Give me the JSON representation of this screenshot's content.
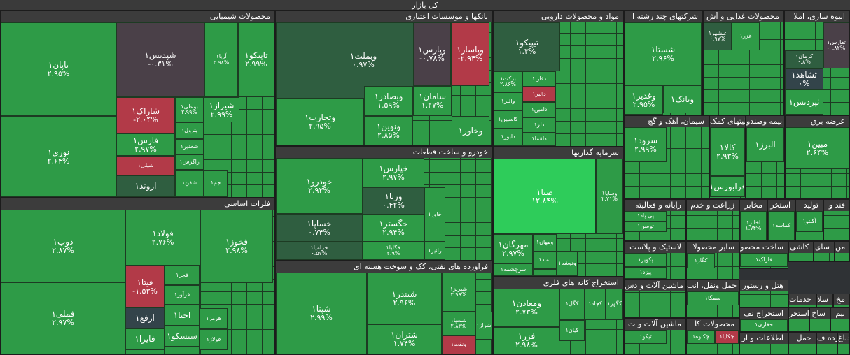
{
  "root_title": "کل بازار",
  "colors": {
    "strong_green": "#2ecc5a",
    "green": "#2e9b47",
    "dark_green": "#2f5e40",
    "neutral": "#4a4048",
    "red": "#b23a48",
    "dark_red": "#8a3140",
    "teal": "#33444a"
  },
  "chart_data": {
    "type": "treemap",
    "title": "کل بازار",
    "sectors": [
      {
        "name": "محصولات شیمیایی",
        "stocks": [
          {
            "symbol": "تاپان۱",
            "change": "۲.۹۵%",
            "color": "#2e9b47"
          },
          {
            "symbol": "نوری۱",
            "change": "۲.۶۴%",
            "color": "#2e9b47"
          },
          {
            "symbol": "شپدیس۱",
            "change": "-۰.۳۱%",
            "color": "#4a4048"
          },
          {
            "symbol": "آریا۱",
            "change": "۲.۹۸%",
            "color": "#2e9b47"
          },
          {
            "symbol": "تاپیکو۱",
            "change": "۲.۹۹%",
            "color": "#2e9b47"
          },
          {
            "symbol": "شاراک۱",
            "change": "-۲.۰۴%",
            "color": "#b23a48"
          },
          {
            "symbol": "بوعلی۱",
            "change": "۲.۹۹%",
            "color": "#2e9b47"
          },
          {
            "symbol": "شیراز۱",
            "change": "۲.۹۹%",
            "color": "#2e9b47"
          },
          {
            "symbol": "فارس۱",
            "change": "۲.۹۷%",
            "color": "#2e9b47"
          },
          {
            "symbol": "شپلی۱",
            "change": "",
            "color": "#b23a48"
          },
          {
            "symbol": "اروند۱",
            "change": "",
            "color": "#2f5e40"
          },
          {
            "symbol": "پترول۱",
            "change": "",
            "color": "#2e9b47"
          },
          {
            "symbol": "شغدیر۱",
            "change": "",
            "color": "#2e9b47"
          },
          {
            "symbol": "زاگرس۱",
            "change": "",
            "color": "#2e9b47"
          },
          {
            "symbol": "جم۱",
            "change": "",
            "color": "#2e9b47"
          },
          {
            "symbol": "شفن۱",
            "change": "",
            "color": "#2e9b47"
          }
        ]
      },
      {
        "name": "بانکها و موسسات اعتباری",
        "stocks": [
          {
            "symbol": "وبملت۱",
            "change": "۰.۹۷%",
            "color": "#2f5e40"
          },
          {
            "symbol": "وتجارت۱",
            "change": "۲.۹۵%",
            "color": "#2e9b47"
          },
          {
            "symbol": "وپاسار۱",
            "change": "-۲.۹۴%",
            "color": "#b23a48"
          },
          {
            "symbol": "وپارس۱",
            "change": "-۰.۷۸%",
            "color": "#4a4048"
          },
          {
            "symbol": "وبصادر۱",
            "change": "۱.۵۹%",
            "color": "#2e9b47"
          },
          {
            "symbol": "سامان۱",
            "change": "۱.۲۷%",
            "color": "#2e9b47"
          },
          {
            "symbol": "ونوین۱",
            "change": "۲.۸۵%",
            "color": "#2e9b47"
          },
          {
            "symbol": "وخاور۱",
            "change": "",
            "color": "#2e9b47"
          }
        ]
      },
      {
        "name": "مواد و محصولات دارویی",
        "stocks": [
          {
            "symbol": "تیپیکو۱",
            "change": "۱.۳%",
            "color": "#2f5e40"
          },
          {
            "symbol": "برکت۱",
            "change": "۲.۸۶%",
            "color": "#2e9b47"
          },
          {
            "symbol": "دفارا۱",
            "change": "",
            "color": "#2e9b47"
          },
          {
            "symbol": "دالبر۱",
            "change": "",
            "color": "#b23a48"
          },
          {
            "symbol": "والبر۱",
            "change": "",
            "color": "#2e9b47"
          },
          {
            "symbol": "دامین۱",
            "change": "",
            "color": "#2e9b47"
          },
          {
            "symbol": "کاسپین۱",
            "change": "",
            "color": "#2e9b47"
          },
          {
            "symbol": "دلر۱",
            "change": "",
            "color": "#2e9b47"
          },
          {
            "symbol": "دابور۱",
            "change": "",
            "color": "#2e9b47"
          },
          {
            "symbol": "دلقما۱",
            "change": "",
            "color": "#2e9b47"
          }
        ]
      },
      {
        "name": "شرکتهای چند رشته ا",
        "stocks": [
          {
            "symbol": "شستا۱",
            "change": "۲.۹۶%",
            "color": "#2e9b47"
          },
          {
            "symbol": "وغدیر۱",
            "change": "۲.۹۵%",
            "color": "#2e9b47"
          },
          {
            "symbol": "وبانک۱",
            "change": "",
            "color": "#2e9b47"
          }
        ]
      },
      {
        "name": "محصولات غذایی و آش",
        "stocks": [
          {
            "symbol": "غبشهر۱",
            "change": "۰.۹۷%",
            "color": "#2f5e40"
          },
          {
            "symbol": "غزر۱",
            "change": "",
            "color": "#2e9b47"
          }
        ]
      },
      {
        "name": "انبوه سازی، املا",
        "stocks": [
          {
            "symbol": "ثفارس۱",
            "change": "-۰.۸۲%",
            "color": "#4a4048"
          },
          {
            "symbol": "کرمان۱",
            "change": "۰.۸%",
            "color": "#2f5e40"
          },
          {
            "symbol": "ثشاهد۱",
            "change": "۰%",
            "color": "#33444a"
          },
          {
            "symbol": "ثپردیس۱",
            "change": "",
            "color": "#2e9b47"
          }
        ]
      },
      {
        "name": "فلزات اساسی",
        "stocks": [
          {
            "symbol": "ذوب۱",
            "change": "۲.۸۷%",
            "color": "#2e9b47"
          },
          {
            "symbol": "فملی۱",
            "change": "۲.۹۷%",
            "color": "#2e9b47"
          },
          {
            "symbol": "فولاد۱",
            "change": "۲.۷۶%",
            "color": "#2e9b47"
          },
          {
            "symbol": "فخوز۱",
            "change": "۲.۹۸%",
            "color": "#2e9b47"
          },
          {
            "symbol": "فیتا۱",
            "change": "-۱.۵۳%",
            "color": "#b23a48"
          },
          {
            "symbol": "فجر۱",
            "change": "",
            "color": "#2e9b47"
          },
          {
            "symbol": "فرآور۱",
            "change": "",
            "color": "#2e9b47"
          },
          {
            "symbol": "ارفع۱",
            "change": "",
            "color": "#33444a"
          },
          {
            "symbol": "احیا۱",
            "change": "",
            "color": "#2e9b47"
          },
          {
            "symbol": "هرمز۱",
            "change": "",
            "color": "#2e9b47"
          },
          {
            "symbol": "فایرا۱",
            "change": "",
            "color": "#2e9b47"
          },
          {
            "symbol": "سیسکو۱",
            "change": "",
            "color": "#2e9b47"
          },
          {
            "symbol": "فولاژ۱",
            "change": "",
            "color": "#2e9b47"
          },
          {
            "symbol": "فباهنر۱",
            "change": "",
            "color": "#2e9b47"
          },
          {
            "symbol": "فنفره۱",
            "change": "",
            "color": "#2e9b47"
          }
        ]
      },
      {
        "name": "خودرو و ساخت قطعات",
        "stocks": [
          {
            "symbol": "خودرو۱",
            "change": "۲.۹۳%",
            "color": "#2e9b47"
          },
          {
            "symbol": "خساپا۱",
            "change": "۰.۷۴%",
            "color": "#2f5e40"
          },
          {
            "symbol": "خزامیا۱",
            "change": "۰.۵۷%",
            "color": "#2f5e40"
          },
          {
            "symbol": "خپارس۱",
            "change": "۲.۹۷%",
            "color": "#2e9b47"
          },
          {
            "symbol": "ورنا۱",
            "change": "۰.۴۲%",
            "color": "#2f5e40"
          },
          {
            "symbol": "خگستر۱",
            "change": "۲.۹۴%",
            "color": "#2e9b47"
          },
          {
            "symbol": "خگلیا۱",
            "change": "۲.۹%",
            "color": "#2e9b47"
          },
          {
            "symbol": "خاور۱",
            "change": "",
            "color": "#2e9b47"
          },
          {
            "symbol": "رانیز۱",
            "change": "",
            "color": "#2e9b47"
          }
        ]
      },
      {
        "name": "سرمایه گذاریها",
        "stocks": [
          {
            "symbol": "صبا۱",
            "change": "۱۲.۸۴%",
            "color": "#2ecc5a"
          },
          {
            "symbol": "وسایا۱",
            "change": "۲.۷۱%",
            "color": "#2e9b47"
          },
          {
            "symbol": "مهرگان۱",
            "change": "۲.۹۷%",
            "color": "#2e9b47"
          },
          {
            "symbol": "ومهان۱",
            "change": "",
            "color": "#2e9b47"
          },
          {
            "symbol": "سرچشمه۱",
            "change": "",
            "color": "#2e9b47"
          },
          {
            "symbol": "نماد۱",
            "change": "",
            "color": "#2e9b47"
          },
          {
            "symbol": "وتوشه۱",
            "change": "",
            "color": "#2e9b47"
          },
          {
            "symbol": "واتی۱",
            "change": "",
            "color": "#b23a48"
          },
          {
            "symbol": "وبری۱",
            "change": "",
            "color": "#2e9b47"
          }
        ]
      },
      {
        "name": "فراورده های نفتی، کک و سوخت هسته ای",
        "stocks": [
          {
            "symbol": "شپنا۱",
            "change": "۲.۹۹%",
            "color": "#2e9b47"
          },
          {
            "symbol": "شبندر۱",
            "change": "۲.۹۶%",
            "color": "#2e9b47"
          },
          {
            "symbol": "شتران۱",
            "change": "۱.۷۴%",
            "color": "#2e9b47"
          },
          {
            "symbol": "شبریز۱",
            "change": "۲.۹۹%",
            "color": "#2e9b47"
          },
          {
            "symbol": "شسپا۱",
            "change": "۲.۸۳%",
            "color": "#2e9b47"
          },
          {
            "symbol": "ونفت۱",
            "change": "",
            "color": "#b23a48"
          },
          {
            "symbol": "شراز۱",
            "change": "",
            "color": "#2e9b47"
          }
        ]
      },
      {
        "name": "استخراج کانه های فلزی",
        "stocks": [
          {
            "symbol": "ومعادن۱",
            "change": "۲.۷۳%",
            "color": "#2e9b47"
          },
          {
            "symbol": "فزر۱",
            "change": "۲.۹۸%",
            "color": "#2e9b47"
          },
          {
            "symbol": "کگل۱",
            "change": "",
            "color": "#2e9b47"
          },
          {
            "symbol": "کچاد۱",
            "change": "",
            "color": "#2e9b47"
          },
          {
            "symbol": "کگهر۱",
            "change": "",
            "color": "#2e9b47"
          },
          {
            "symbol": "کیان۱",
            "change": "",
            "color": "#2e9b47"
          }
        ]
      },
      {
        "name": "سیمان، آهک و گچ",
        "stocks": [
          {
            "symbol": "سرود۱",
            "change": "۲.۹۹%",
            "color": "#2e9b47"
          }
        ]
      },
      {
        "name": "فعالیتهای کمک",
        "stocks": [
          {
            "symbol": "کالا۱",
            "change": "۲.۹۳%",
            "color": "#2e9b47"
          },
          {
            "symbol": "فرابورس۱",
            "change": "",
            "color": "#2e9b47"
          }
        ]
      },
      {
        "name": "بیمه وصندو",
        "stocks": [
          {
            "symbol": "البرز۱",
            "change": "",
            "color": "#2e9b47"
          }
        ]
      },
      {
        "name": "عرضه برق",
        "stocks": [
          {
            "symbol": "مبین۱",
            "change": "۲.۶۴%",
            "color": "#2e9b47"
          }
        ]
      },
      {
        "name": "رایانه و فعالیته",
        "stocks": [
          {
            "symbol": "پی پاد۱",
            "change": "",
            "color": "#2e9b47"
          },
          {
            "symbol": "توسن۱",
            "change": "",
            "color": "#2e9b47"
          }
        ]
      },
      {
        "name": "زراعت و خدم",
        "stocks": []
      },
      {
        "name": "مخابر",
        "stocks": [
          {
            "symbol": "اخابر۱",
            "change": "۱.۷۴%",
            "color": "#2e9b47"
          },
          {
            "symbol": "همراه۱",
            "change": "",
            "color": "#2e9b47"
          }
        ]
      },
      {
        "name": "استخر",
        "stocks": [
          {
            "symbol": "کماسه۱",
            "change": "",
            "color": "#2e9b47"
          }
        ]
      },
      {
        "name": "تولید",
        "stocks": [
          {
            "symbol": "آکنتو۱",
            "change": "",
            "color": "#2e9b47"
          }
        ]
      },
      {
        "name": "قند و",
        "stocks": []
      },
      {
        "name": "لاستیک و پلاست",
        "stocks": [
          {
            "symbol": "پکویر۱",
            "change": "",
            "color": "#2e9b47"
          },
          {
            "symbol": "پیزد۱",
            "change": "",
            "color": "#2e9b47"
          }
        ]
      },
      {
        "name": "سایر محصولا",
        "stocks": [
          {
            "symbol": "کگاز۱",
            "change": "",
            "color": "#2e9b47"
          }
        ]
      },
      {
        "name": "ساخت محصو",
        "stocks": [
          {
            "symbol": "فاراک۱",
            "change": "",
            "color": "#2e9b47"
          }
        ]
      },
      {
        "name": "کاشی",
        "stocks": []
      },
      {
        "name": "سای",
        "stocks": []
      },
      {
        "name": "من",
        "stocks": []
      },
      {
        "name": "ماشین آلات و دس",
        "stocks": []
      },
      {
        "name": "حمل ونقل، انب",
        "stocks": [
          {
            "symbol": "سمگا۱",
            "change": "",
            "color": "#2e9b47"
          }
        ]
      },
      {
        "name": "هتل و رستور",
        "stocks": []
      },
      {
        "name": "خدمات",
        "stocks": []
      },
      {
        "name": "سلا",
        "stocks": []
      },
      {
        "name": "مخ",
        "stocks": []
      },
      {
        "name": "ماشین آلات و ت",
        "stocks": [
          {
            "symbol": "تیکو۱",
            "change": "",
            "color": "#2e9b47"
          }
        ]
      },
      {
        "name": "استخراج نف",
        "stocks": [
          {
            "symbol": "حفاری۱",
            "change": "",
            "color": "#2e9b47"
          }
        ]
      },
      {
        "name": "استخر",
        "stocks": []
      },
      {
        "name": "ساخ",
        "stocks": []
      },
      {
        "name": "بیم",
        "stocks": []
      },
      {
        "name": "محصولات کا",
        "stocks": [
          {
            "symbol": "چکاپا۱",
            "change": "",
            "color": "#b23a48"
          },
          {
            "symbol": "چکاوه۱",
            "change": "",
            "color": "#2e9b47"
          }
        ]
      },
      {
        "name": "اطلاعات و ار",
        "stocks": []
      },
      {
        "name": "حمل",
        "stocks": []
      },
      {
        "name": "خرده ف",
        "stocks": []
      },
      {
        "name": "دباغ",
        "stocks": []
      }
    ]
  }
}
